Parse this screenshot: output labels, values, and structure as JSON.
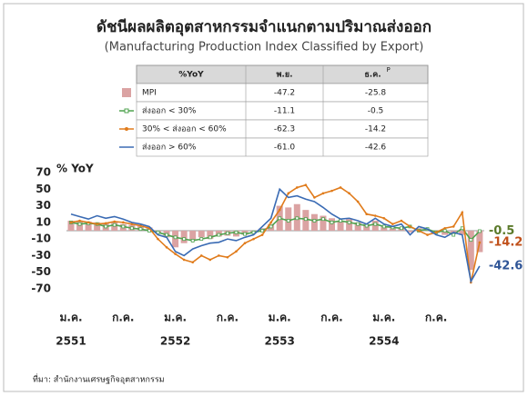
{
  "chart_data": {
    "type": "bar-line",
    "title": "ดัชนีผลผลิตอุตสาหกรรมจำแนกตามปริมาณส่งออก",
    "subtitle": "(Manufacturing Production Index Classified by Export)",
    "ylabel": "% YoY",
    "ylim": [
      -70,
      70
    ],
    "yticks": [
      70,
      50,
      30,
      10,
      -10,
      -30,
      -50,
      -70
    ],
    "categories": [
      "ม.ค.",
      null,
      null,
      null,
      null,
      null,
      "ก.ค.",
      null,
      null,
      null,
      null,
      null,
      "ม.ค.",
      null,
      null,
      null,
      null,
      null,
      "ก.ค.",
      null,
      null,
      null,
      null,
      null,
      "ม.ค.",
      null,
      null,
      null,
      null,
      null,
      "ก.ค.",
      null,
      null,
      null,
      null,
      null,
      "ม.ค.",
      null,
      null,
      null,
      null,
      null,
      "ก.ค.",
      null,
      null,
      null,
      null,
      null
    ],
    "years": [
      "2551",
      null,
      null,
      null,
      null,
      null,
      null,
      null,
      null,
      null,
      null,
      null,
      "2552",
      null,
      null,
      null,
      null,
      null,
      null,
      null,
      null,
      null,
      null,
      null,
      "2553",
      null,
      null,
      null,
      null,
      null,
      null,
      null,
      null,
      null,
      null,
      null,
      "2554",
      null,
      null,
      null,
      null,
      null,
      null,
      null,
      null,
      null,
      null,
      null
    ],
    "series": [
      {
        "name": "MPI",
        "kind": "bar",
        "color": "#dba3a3",
        "values": [
          12,
          12,
          11,
          10,
          9,
          10,
          8,
          7,
          6,
          4,
          -3,
          -8,
          -20,
          -15,
          -12,
          -8,
          -10,
          -7,
          -6,
          -7,
          -5,
          -3,
          3,
          8,
          30,
          28,
          32,
          25,
          20,
          18,
          15,
          12,
          14,
          10,
          8,
          12,
          5,
          3,
          4,
          -2,
          3,
          0,
          -3,
          -5,
          -3,
          -5,
          -47.2,
          -25.8
        ]
      },
      {
        "name": "ส่งออก < 30%",
        "kind": "line",
        "marker": "square",
        "color": "#4ea24e",
        "end_label": "-0.5",
        "end_color": "#5b7a2a",
        "values": [
          10,
          8,
          9,
          8,
          5,
          7,
          5,
          3,
          2,
          0,
          -2,
          -5,
          -8,
          -10,
          -12,
          -10,
          -8,
          -5,
          -3,
          -2,
          -4,
          -2,
          0,
          5,
          15,
          12,
          15,
          14,
          12,
          14,
          10,
          12,
          10,
          8,
          6,
          8,
          5,
          4,
          3,
          5,
          0,
          2,
          -2,
          0,
          -5,
          3,
          -11.1,
          -0.5
        ]
      },
      {
        "name": "30% < ส่งออก < 60%",
        "kind": "line",
        "marker": "dot",
        "color": "#e07b1b",
        "end_label": "-14.2",
        "end_color": "#c0501a",
        "values": [
          10,
          12,
          10,
          8,
          9,
          11,
          10,
          8,
          6,
          3,
          -10,
          -20,
          -28,
          -35,
          -38,
          -30,
          -35,
          -30,
          -32,
          -25,
          -15,
          -10,
          -5,
          10,
          25,
          45,
          52,
          55,
          40,
          45,
          48,
          52,
          45,
          35,
          20,
          18,
          15,
          8,
          12,
          5,
          0,
          -5,
          -2,
          3,
          5,
          22,
          -62.3,
          -14.2
        ]
      },
      {
        "name": "ส่งออก > 60%",
        "kind": "line",
        "marker": "none",
        "color": "#3a6bb4",
        "end_label": "-42.6",
        "end_color": "#2f5597",
        "values": [
          20,
          17,
          14,
          18,
          15,
          17,
          14,
          10,
          8,
          5,
          -5,
          -8,
          -25,
          -30,
          -22,
          -18,
          -15,
          -14,
          -10,
          -12,
          -8,
          -5,
          5,
          15,
          50,
          40,
          42,
          38,
          35,
          28,
          20,
          14,
          15,
          12,
          8,
          15,
          8,
          5,
          8,
          -5,
          5,
          2,
          -5,
          -8,
          -2,
          -5,
          -61.0,
          -42.6
        ]
      }
    ],
    "table": {
      "header": [
        "%YoY",
        "พ.ย.",
        "ธ.ค."
      ],
      "header_sup": "P",
      "rows": [
        [
          "-47.2",
          "-25.8"
        ],
        [
          "-11.1",
          "-0.5"
        ],
        [
          "-62.3",
          "-14.2"
        ],
        [
          "-61.0",
          "-42.6"
        ]
      ]
    },
    "source": "ที่มา: สำนักงานเศรษฐกิจอุตสาหกรรม"
  }
}
